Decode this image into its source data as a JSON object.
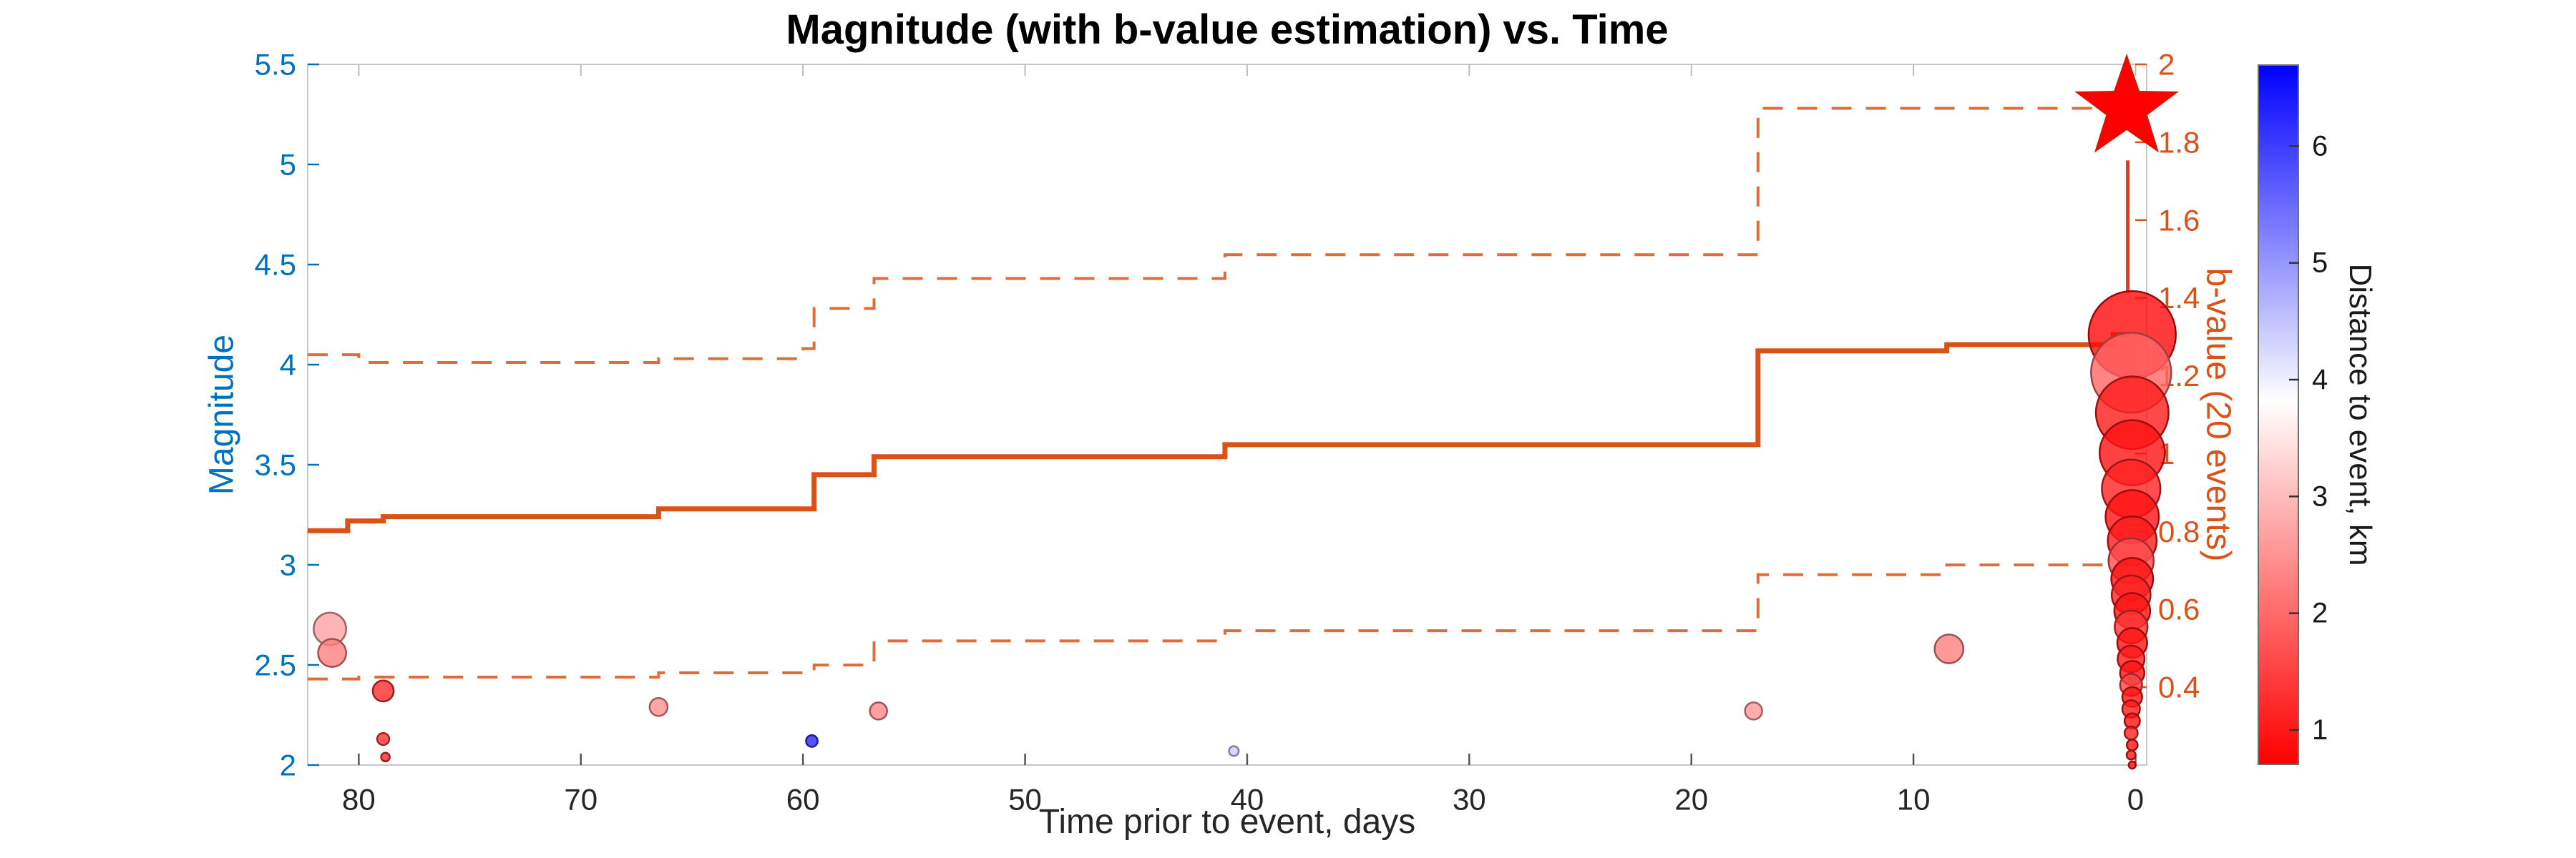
{
  "chart_data": {
    "type": "scatter",
    "title": "Magnitude (with b-value estimation) vs. Time",
    "x_axis": {
      "label": "Time prior to event, days",
      "direction": "reversed",
      "range_left_to_right": [
        82.3,
        -0.5
      ],
      "tick_labels": [
        "80",
        "70",
        "60",
        "50",
        "40",
        "30",
        "20",
        "10",
        "0"
      ],
      "tick_values": [
        80,
        70,
        60,
        50,
        40,
        30,
        20,
        10,
        0
      ],
      "color": "#262626"
    },
    "y_left": {
      "label": "Magnitude",
      "range": [
        2,
        5.5
      ],
      "tick_labels": [
        "2",
        "2.5",
        "3",
        "3.5",
        "4",
        "4.5",
        "5",
        "5.5"
      ],
      "tick_values": [
        2,
        2.5,
        3,
        3.5,
        4,
        4.5,
        5,
        5.5
      ],
      "color": "#0072BD"
    },
    "y_right": {
      "label": "b-value (20 events)",
      "range": [
        0.2,
        2.0
      ],
      "tick_labels": [
        "0.4",
        "0.6",
        "0.8",
        "1",
        "1.2",
        "1.4",
        "1.6",
        "1.8",
        "2"
      ],
      "tick_values": [
        0.4,
        0.6,
        0.8,
        1,
        1.2,
        1.4,
        1.6,
        1.8,
        2
      ],
      "color": "#D95319"
    },
    "colorbar": {
      "label": "Distance to event, km",
      "range": [
        0.7,
        6.7
      ],
      "tick_labels": [
        "1",
        "2",
        "3",
        "4",
        "5",
        "6"
      ],
      "tick_values": [
        1,
        2,
        3,
        4,
        5,
        6
      ],
      "gradient_bottom_to_top": [
        "#FF0000",
        "#FFFFFF",
        "#0000FF"
      ]
    },
    "marker_size_rule": "radius_px = 5 + (magnitude - 2) * 26",
    "events": {
      "columns": [
        "time_days",
        "magnitude",
        "distance_km"
      ],
      "background": [
        [
          81.3,
          2.68,
          2.6
        ],
        [
          81.2,
          2.56,
          2.2
        ],
        [
          78.9,
          2.37,
          1.2
        ],
        [
          78.9,
          2.13,
          1.3
        ],
        [
          78.8,
          2.04,
          1.2
        ],
        [
          66.5,
          2.29,
          2.4
        ],
        [
          59.6,
          2.12,
          6.2
        ],
        [
          56.6,
          2.27,
          2.3
        ],
        [
          40.6,
          2.07,
          4.3
        ],
        [
          17.2,
          2.27,
          2.5
        ],
        [
          8.4,
          2.58,
          2.2
        ]
      ],
      "foreshock_cluster_near_zero": [
        [
          0.15,
          4.15,
          0.8
        ],
        [
          0.2,
          3.96,
          1.9
        ],
        [
          0.15,
          3.76,
          1.0
        ],
        [
          0.15,
          3.56,
          0.9
        ],
        [
          0.2,
          3.38,
          1.1
        ],
        [
          0.15,
          3.24,
          0.9
        ],
        [
          0.15,
          3.12,
          1.0
        ],
        [
          0.2,
          3.02,
          1.6
        ],
        [
          0.15,
          2.93,
          0.9
        ],
        [
          0.2,
          2.85,
          1.1
        ],
        [
          0.15,
          2.77,
          0.9
        ],
        [
          0.2,
          2.69,
          1.3
        ],
        [
          0.15,
          2.61,
          0.9
        ],
        [
          0.2,
          2.53,
          1.0
        ],
        [
          0.15,
          2.46,
          0.9
        ],
        [
          0.2,
          2.4,
          1.5
        ],
        [
          0.15,
          2.34,
          0.9
        ],
        [
          0.2,
          2.28,
          1.0
        ],
        [
          0.15,
          2.22,
          0.9
        ],
        [
          0.2,
          2.16,
          1.1
        ],
        [
          0.15,
          2.1,
          0.9
        ],
        [
          0.2,
          2.05,
          1.0
        ],
        [
          0.15,
          2.0,
          0.9
        ]
      ]
    },
    "main_event": {
      "time_days": 0.4,
      "magnitude": 5.28,
      "distance_km": 0.3,
      "marker": "star",
      "color": "#FF0000"
    },
    "event_stem": {
      "time_days": 0.35,
      "from_magnitude": 4.36,
      "to_magnitude": 5.02,
      "color": "#E8351F"
    },
    "b_value_series": {
      "solid_estimate": {
        "color": "#D95319",
        "style": "solid",
        "step_points_time_bvalue": [
          [
            82.3,
            0.802
          ],
          [
            80.5,
            0.827
          ],
          [
            78.9,
            0.838
          ],
          [
            66.5,
            0.858
          ],
          [
            59.5,
            0.946
          ],
          [
            56.8,
            0.992
          ],
          [
            41,
            1.023
          ],
          [
            17,
            1.264
          ],
          [
            8.5,
            1.28
          ],
          [
            1,
            1.306
          ],
          [
            0.2,
            1.306
          ]
        ]
      },
      "upper_bound": {
        "color": "#D95319",
        "style": "dashed",
        "step_points_time_bvalue": [
          [
            82.3,
            1.254
          ],
          [
            80,
            1.234
          ],
          [
            66.5,
            1.244
          ],
          [
            60,
            1.27
          ],
          [
            59.5,
            1.373
          ],
          [
            56.8,
            1.45
          ],
          [
            41,
            1.511
          ],
          [
            17,
            1.887
          ],
          [
            0.2,
            1.887
          ]
        ]
      },
      "lower_bound": {
        "color": "#D95319",
        "style": "dashed",
        "step_points_time_bvalue": [
          [
            82.3,
            0.421
          ],
          [
            80,
            0.426
          ],
          [
            66.5,
            0.437
          ],
          [
            59.5,
            0.457
          ],
          [
            56.8,
            0.519
          ],
          [
            41,
            0.545
          ],
          [
            17,
            0.689
          ],
          [
            8.5,
            0.714
          ],
          [
            0.2,
            0.714
          ]
        ]
      }
    }
  }
}
